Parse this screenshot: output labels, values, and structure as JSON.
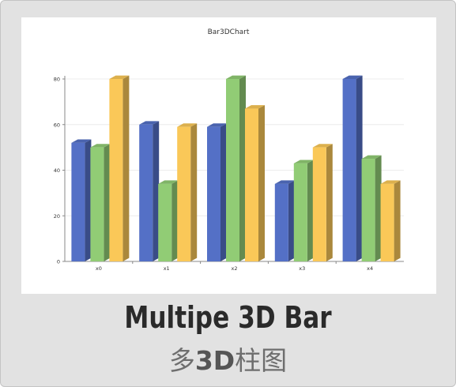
{
  "chart_data": {
    "type": "bar",
    "variant": "3d-grouped",
    "title": "Bar3DChart",
    "categories": [
      "x0",
      "x1",
      "x2",
      "x3",
      "x4"
    ],
    "series": [
      {
        "values": [
          52,
          60,
          59,
          34,
          80
        ],
        "color": "#5470c6"
      },
      {
        "values": [
          50,
          34,
          80,
          43,
          45
        ],
        "color": "#91cc75"
      },
      {
        "values": [
          80,
          59,
          67,
          50,
          34
        ],
        "color": "#fac858"
      }
    ],
    "y_ticks": [
      "0",
      "20",
      "40",
      "60",
      "80"
    ],
    "ylim": [
      0,
      80
    ],
    "grid": true,
    "legend": "none"
  },
  "caption": {
    "english": "Multipe 3D Bar",
    "chinese_pre": "多",
    "chinese_highlight": "3D",
    "chinese_post": "柱图"
  }
}
